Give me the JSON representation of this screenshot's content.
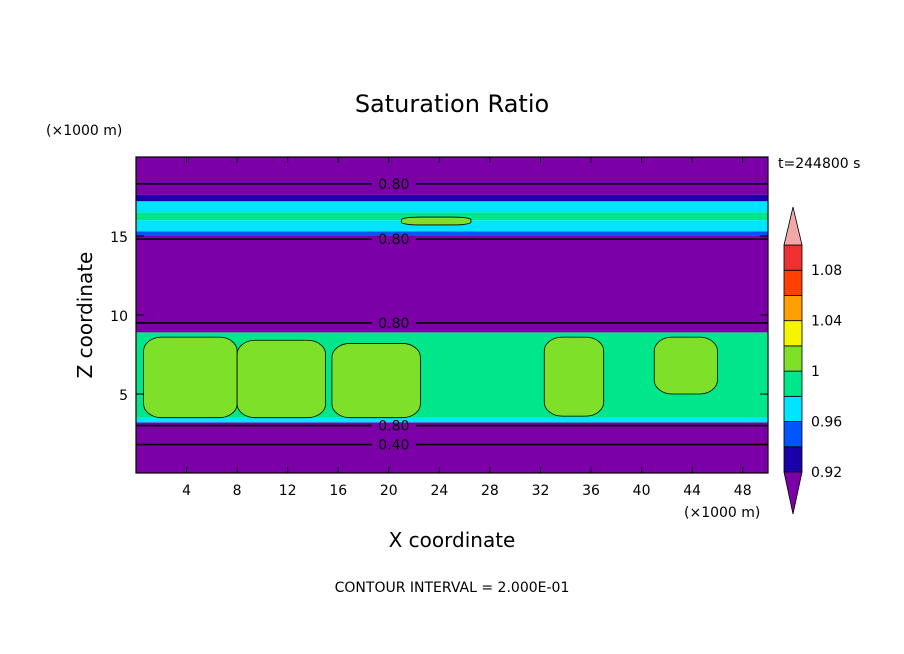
{
  "chart_data": {
    "type": "heatmap",
    "title": "Saturation Ratio",
    "xlabel": "X coordinate",
    "ylabel": "Z coordinate",
    "x_unit": "(×1000 m)",
    "y_unit": "(×1000 m)",
    "time_label": "t=244800 s",
    "footer": "CONTOUR INTERVAL = 2.000E-01",
    "xlim": [
      0,
      50
    ],
    "ylim": [
      0,
      20
    ],
    "x_ticks": [
      4,
      8,
      12,
      16,
      20,
      24,
      28,
      32,
      36,
      40,
      44,
      48
    ],
    "x_tick_labels": [
      "4",
      "8",
      "12",
      "16",
      "20",
      "24",
      "28",
      "32",
      "36",
      "40",
      "44",
      "48"
    ],
    "y_ticks": [
      5,
      10,
      15
    ],
    "y_tick_labels": [
      "5",
      "10",
      "15"
    ],
    "colorbar": {
      "bounds": [
        0.92,
        0.94,
        0.96,
        0.98,
        1.0,
        1.02,
        1.04,
        1.06,
        1.08,
        1.1
      ],
      "colors": [
        "#7b00a8",
        "#1a00a8",
        "#0055ff",
        "#00e5ff",
        "#00e68a",
        "#7fe02a",
        "#f5f500",
        "#ffa000",
        "#ff4000",
        "#f03030",
        "#f0a8a8"
      ],
      "labels": [
        "0.92",
        "0.96",
        "1",
        "1.04",
        "1.08"
      ],
      "label_values": [
        0.92,
        0.96,
        1.0,
        1.04,
        1.08
      ]
    },
    "contour_lines": [
      {
        "value": 0.8,
        "label": "0.80",
        "z": 18.3,
        "label_x": 20.4
      },
      {
        "value": 0.8,
        "label": "0.80",
        "z": 14.8,
        "label_x": 20.4
      },
      {
        "value": 0.8,
        "label": "0.80",
        "z": 9.5,
        "label_x": 20.4
      },
      {
        "value": 0.8,
        "label": "0.80",
        "z": 3.0,
        "label_x": 20.4
      },
      {
        "value": 0.4,
        "label": "0.40",
        "z": 1.8,
        "label_x": 20.4
      }
    ],
    "bands": [
      {
        "z0": 0,
        "z1": 3.2,
        "value": 0.5
      },
      {
        "z0": 3.2,
        "z1": 3.5,
        "value": 0.97
      },
      {
        "z0": 3.5,
        "z1": 8.9,
        "value": 0.99
      },
      {
        "z0": 8.9,
        "z1": 15.0,
        "value": 0.5
      },
      {
        "z0": 15.0,
        "z1": 15.3,
        "value": 0.95
      },
      {
        "z0": 15.3,
        "z1": 16.0,
        "value": 0.97
      },
      {
        "z0": 16.0,
        "z1": 16.5,
        "value": 0.99
      },
      {
        "z0": 16.5,
        "z1": 17.2,
        "value": 0.97
      },
      {
        "z0": 17.2,
        "z1": 17.6,
        "value": 0.93
      },
      {
        "z0": 17.6,
        "z1": 20.0,
        "value": 0.5
      }
    ],
    "regions_above_1": [
      {
        "x0": 0.6,
        "x1": 8.0,
        "z0": 3.5,
        "z1": 8.6
      },
      {
        "x0": 8.0,
        "x1": 15.0,
        "z0": 3.5,
        "z1": 8.4
      },
      {
        "x0": 15.5,
        "x1": 22.5,
        "z0": 3.5,
        "z1": 8.2
      },
      {
        "x0": 32.3,
        "x1": 37.0,
        "z0": 3.6,
        "z1": 8.6
      },
      {
        "x0": 41.0,
        "x1": 46.0,
        "z0": 5.0,
        "z1": 8.6
      },
      {
        "x0": 21.0,
        "x1": 26.5,
        "z0": 15.7,
        "z1": 16.2
      }
    ]
  }
}
